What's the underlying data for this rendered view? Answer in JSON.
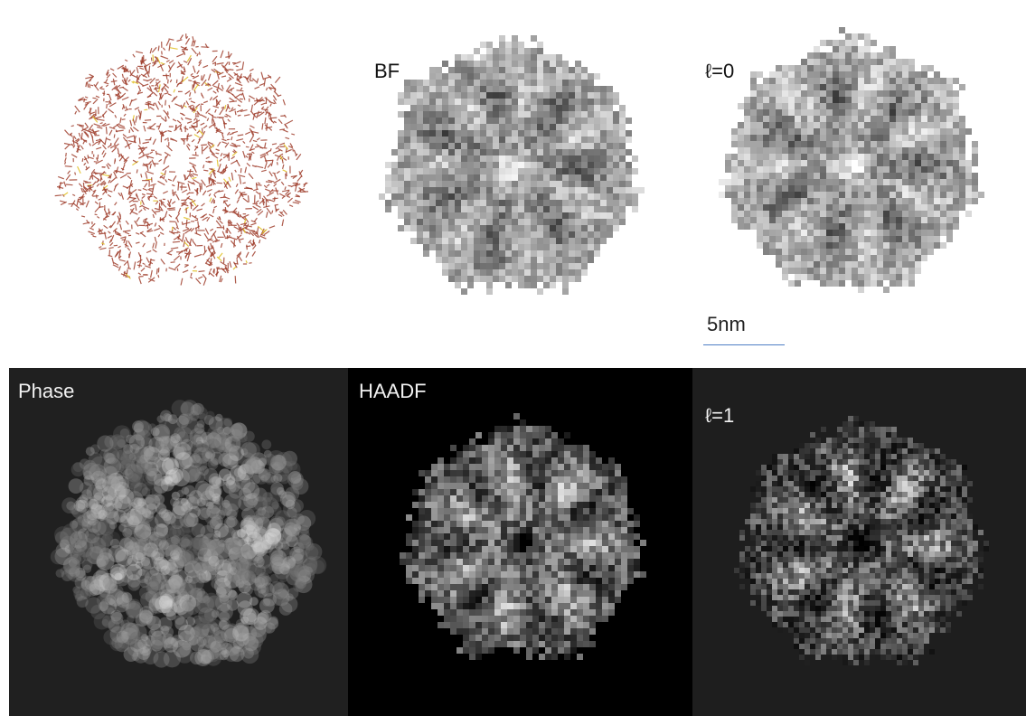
{
  "figure": {
    "top_row": [
      {
        "id": "molecule",
        "label": ""
      },
      {
        "id": "bf",
        "label": "BF"
      },
      {
        "id": "l0",
        "label": "ℓ=0"
      }
    ],
    "bottom_row": [
      {
        "id": "phase",
        "label": "Phase"
      },
      {
        "id": "haadf",
        "label": "HAADF"
      },
      {
        "id": "l1",
        "label": "ℓ=1"
      }
    ],
    "scale_bar": {
      "label": "5nm",
      "color": "#4f7fc4"
    }
  },
  "colors": {
    "molecule_bond": "#a0402e",
    "molecule_highlight": "#e0c020",
    "bf_background": "#ffffff",
    "phase_background": "#202020",
    "haadf_background": "#000000",
    "l1_background": "#1e1e1e"
  }
}
